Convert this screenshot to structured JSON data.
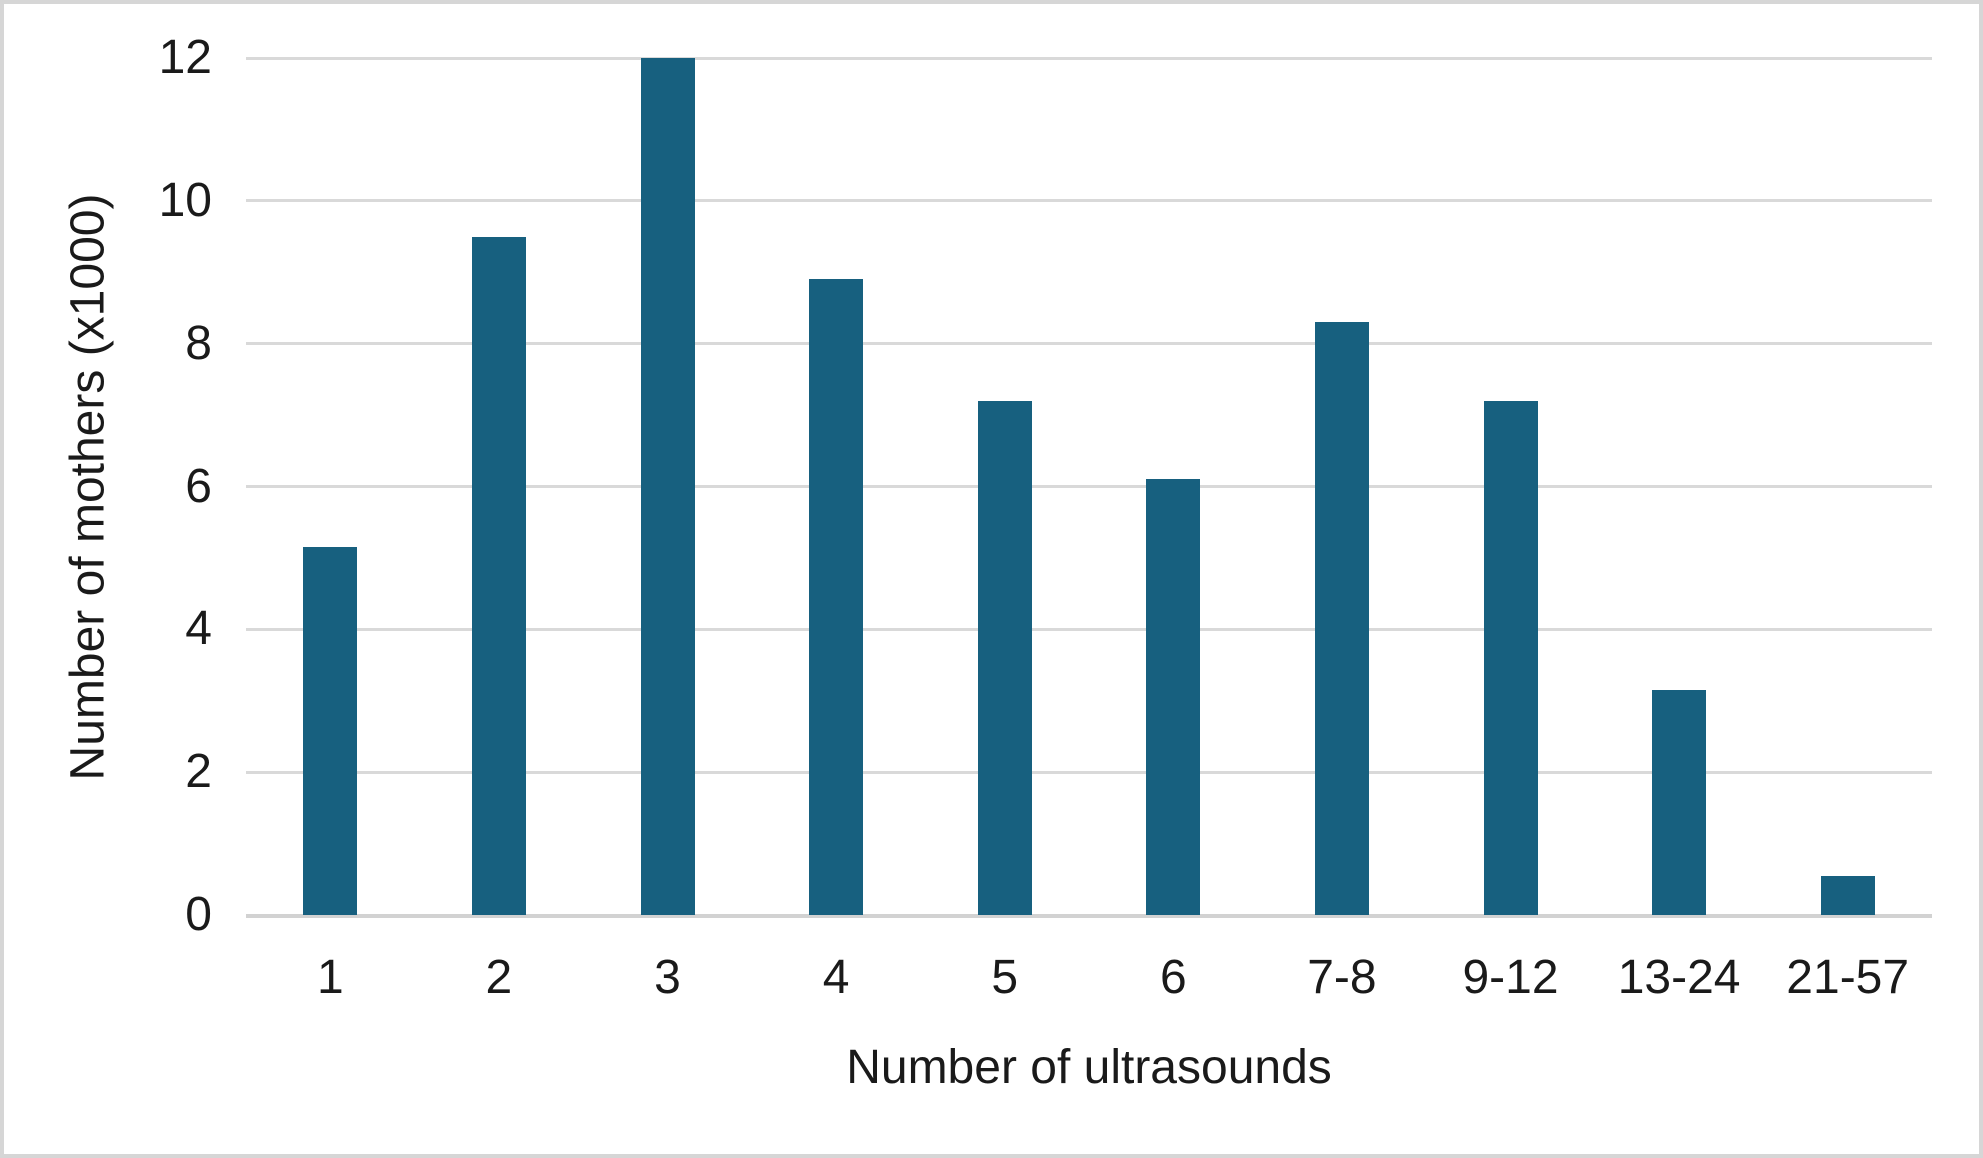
{
  "chart_data": {
    "type": "bar",
    "title": "",
    "categories": [
      "1",
      "2",
      "3",
      "4",
      "5",
      "6",
      "7-8",
      "9-12",
      "13-24",
      "21-57"
    ],
    "values": [
      5.15,
      9.5,
      12.0,
      8.9,
      7.2,
      6.1,
      8.3,
      7.2,
      3.15,
      0.55
    ],
    "xlabel": "Number of ultrasounds",
    "ylabel": "Number of mothers (x1000)",
    "ylim": [
      0,
      12
    ],
    "y_ticks": [
      0,
      2,
      4,
      6,
      8,
      10,
      12
    ],
    "grid": true,
    "legend": false,
    "colors": {
      "bar_fill": "#17607F",
      "gridline": "#D9D9D9",
      "axis_line": "#D2D2D2",
      "text": "#1A1A1A",
      "frame_border": "#D6D6D6",
      "background": "#FFFFFF"
    }
  }
}
